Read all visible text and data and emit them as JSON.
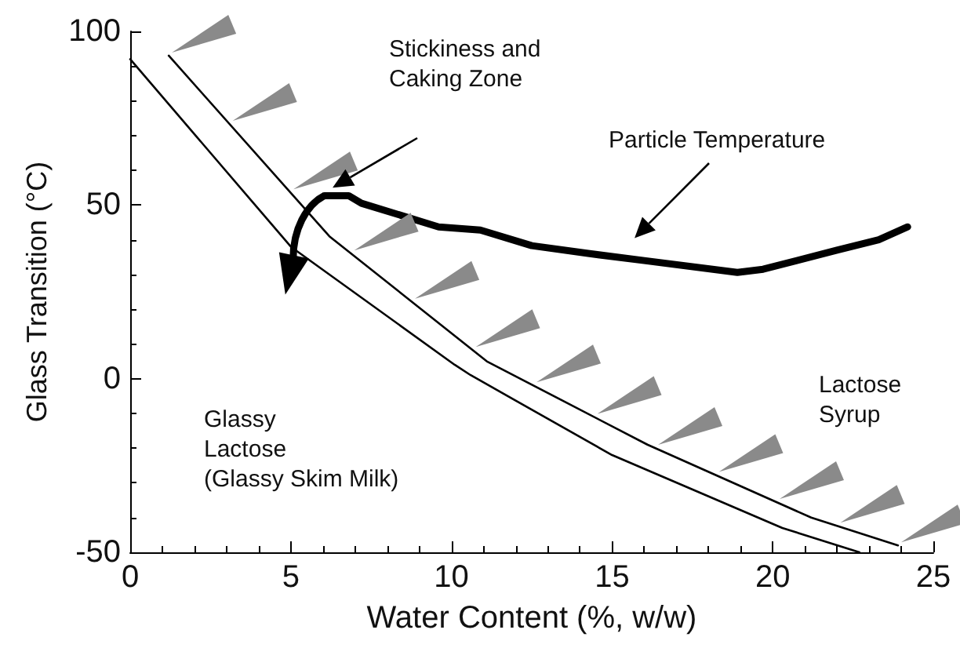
{
  "chart_data": {
    "type": "line",
    "xlabel": "Water Content (%, w/w)",
    "ylabel": "Glass Transition (°C)",
    "xlim": [
      0,
      25
    ],
    "xticks": [
      0,
      5,
      10,
      15,
      20,
      25
    ],
    "ylim": [
      -50,
      100
    ],
    "yticks": [
      -50,
      0,
      50,
      100
    ],
    "marker": "none",
    "line_style": "solid",
    "series": [
      {
        "color": "#000000",
        "x": [
          0,
          5,
          10.1,
          10.6,
          15,
          20.3,
          22.7
        ],
        "values": [
          92,
          38,
          4,
          1,
          -22,
          -43,
          -50
        ]
      },
      {
        "color": "#000000",
        "x": [
          1.2,
          6.2,
          11.1,
          16.1,
          21.2,
          23.9
        ],
        "values": [
          93,
          41,
          5,
          -19,
          -40,
          -48
        ]
      },
      {
        "color": "#000000",
        "x": [
          6.05,
          6.8,
          7.2,
          9.6,
          10.9,
          12.5,
          14.3,
          16,
          18.9,
          19.7,
          22,
          23.3,
          24.2
        ],
        "values": [
          52.7,
          52.7,
          50.5,
          43.7,
          42.8,
          38.3,
          36,
          34,
          30.6,
          31.5,
          37,
          40,
          43.7
        ]
      }
    ],
    "annotations": [
      "Stickiness and\nCaking Zone",
      "Particle Temperature",
      "Lactose\nSyrup",
      "Glassy\nLactose\n(Glassy Skim Milk)"
    ]
  }
}
